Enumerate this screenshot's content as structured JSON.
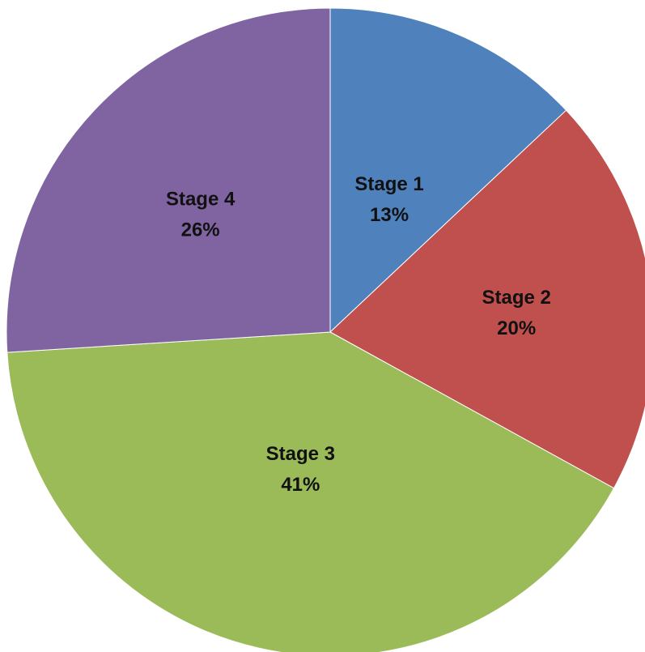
{
  "chart_data": {
    "type": "pie",
    "slices": [
      {
        "label": "Stage 1",
        "value": 13,
        "value_label": "13%",
        "color": "#4F81BD"
      },
      {
        "label": "Stage 2",
        "value": 20,
        "value_label": "20%",
        "color": "#C0504D"
      },
      {
        "label": "Stage 3",
        "value": 41,
        "value_label": "41%",
        "color": "#9BBB59"
      },
      {
        "label": "Stage 4",
        "value": 26,
        "value_label": "26%",
        "color": "#8064A2"
      }
    ],
    "start_angle": "12 o'clock",
    "direction": "clockwise",
    "legend": "none",
    "data_labels": "inside"
  }
}
